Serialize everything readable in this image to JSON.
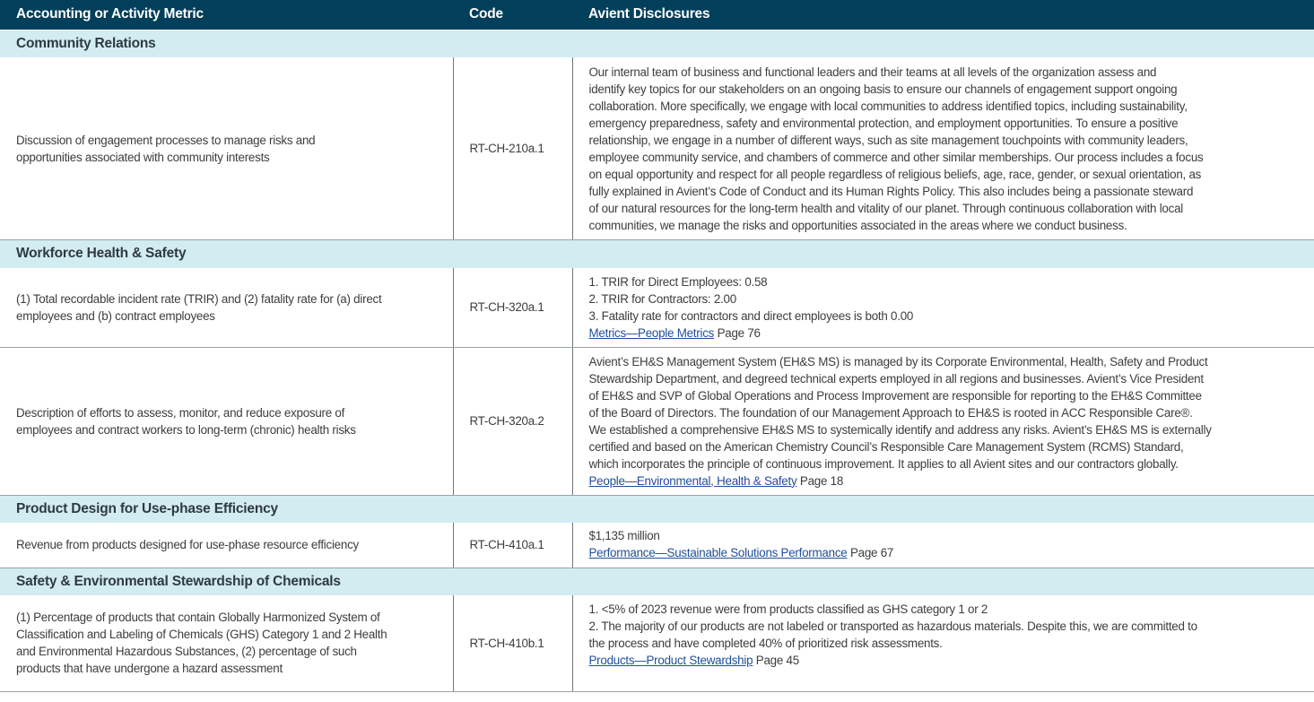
{
  "header": {
    "metric": "Accounting or Activity Metric",
    "code": "Code",
    "disclosures": "Avient Disclosures"
  },
  "colors": {
    "header_bg": "#023f5a",
    "section_bg": "#d3ecf1",
    "link": "#1f4f9c"
  },
  "sections": [
    {
      "title": "Community Relations",
      "rows": [
        {
          "metric": [
            "Discussion of engagement processes to manage risks and",
            "opportunities associated with community interests"
          ],
          "code": "RT-CH-210a.1",
          "lines": [
            "Our internal team of business and functional leaders and their teams at all levels of the organization assess and",
            "identify key topics for our stakeholders on an ongoing basis to ensure our channels of engagement support ongoing",
            "collaboration. More specifically, we engage with local communities to address identified topics, including sustainability,",
            "emergency preparedness, safety and environmental protection, and employment opportunities. To ensure a positive",
            "relationship, we engage in a number of different ways, such as site management touchpoints with community leaders,",
            "employee community service, and chambers of commerce and other similar memberships. Our process includes a focus",
            "on equal opportunity and respect for all people regardless of religious beliefs, age, race, gender, or sexual orientation, as",
            "fully explained in Avient’s Code of Conduct and its Human Rights Policy. This also includes being a passionate steward",
            "of our natural resources for the long-term health and vitality of our planet. Through continuous collaboration with local",
            "communities, we manage the risks and opportunities associated in the areas where we conduct business."
          ]
        }
      ]
    },
    {
      "title": "Workforce Health & Safety",
      "rows": [
        {
          "metric": [
            "(1) Total recordable incident rate (TRIR) and (2) fatality rate for (a) direct",
            "employees and (b) contract employees"
          ],
          "code": "RT-CH-320a.1",
          "lines": [
            "1. TRIR for Direct Employees: 0.58",
            "2. TRIR for Contractors: 2.00",
            "3. Fatality rate for contractors and direct employees is both 0.00"
          ],
          "link": {
            "text": "Metrics—People Metrics",
            "page": "Page 76"
          }
        },
        {
          "metric": [
            "Description of efforts to assess, monitor, and reduce exposure of",
            "employees and contract workers to long-term (chronic) health risks"
          ],
          "code": "RT-CH-320a.2",
          "lines": [
            "Avient’s EH&S Management System (EH&S MS) is managed by its Corporate Environmental, Health, Safety and Product",
            "Stewardship Department, and degreed technical experts employed in all regions and businesses. Avient’s Vice President",
            "of EH&S and SVP of Global Operations and Process Improvement are responsible for reporting to the EH&S Committee",
            "of the Board of Directors. The foundation of our Management Approach to EH&S is rooted in ACC Responsible Care®.",
            "We established a comprehensive EH&S MS to systemically identify and address any risks. Avient’s EH&S MS is externally",
            "certified and based on the American Chemistry Council’s Responsible Care Management System (RCMS) Standard,",
            "which incorporates the principle of continuous improvement. It applies to all Avient sites and our contractors globally."
          ],
          "link": {
            "text": "People—Environmental, Health & Safety",
            "page": "Page 18"
          }
        }
      ]
    },
    {
      "title": "Product Design for Use-phase Efficiency",
      "rows": [
        {
          "metric": [
            "Revenue from products designed for use-phase resource efficiency"
          ],
          "code": "RT-CH-410a.1",
          "lines": [
            "$1,135 million"
          ],
          "link": {
            "text": "Performance—Sustainable Solutions Performance",
            "page": "Page 67"
          }
        }
      ]
    },
    {
      "title": "Safety & Environmental Stewardship of Chemicals",
      "rows": [
        {
          "metric": [
            "(1) Percentage of products that contain Globally Harmonized System of",
            "Classification and Labeling of Chemicals (GHS) Category 1 and 2 Health",
            "and Environmental Hazardous Substances, (2) percentage of such",
            "products that have undergone a hazard assessment"
          ],
          "code": "RT-CH-410b.1",
          "lines": [
            "1. <5% of 2023 revenue were from products classified as GHS category 1 or 2",
            "2. The majority of our products are not labeled or transported as hazardous materials. Despite this, we are committed to",
            "the process and have completed 40% of prioritized risk assessments."
          ],
          "link": {
            "text": "Products—Product Stewardship",
            "page": "Page 45"
          }
        }
      ]
    }
  ]
}
